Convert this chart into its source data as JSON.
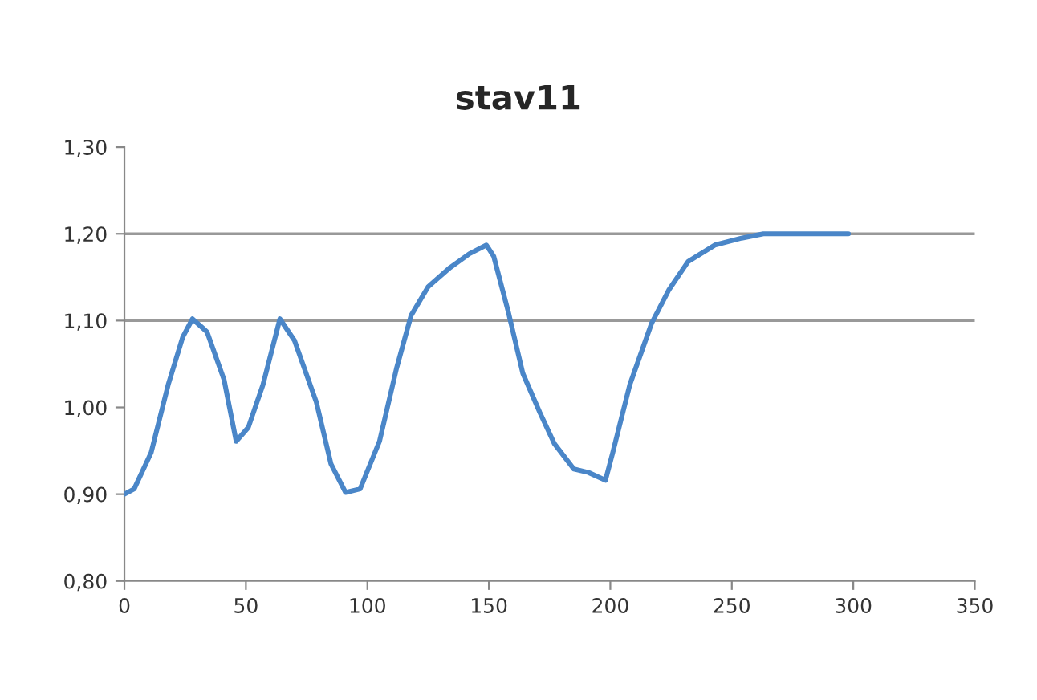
{
  "chart_data": {
    "type": "line",
    "title": "stav11",
    "x": [
      0,
      4,
      11,
      18,
      24,
      28,
      34,
      41,
      46,
      51,
      57,
      64,
      70,
      79,
      85,
      91,
      97,
      105,
      112,
      118,
      125,
      134,
      142,
      149,
      152,
      158,
      164,
      171,
      177,
      185,
      191,
      198,
      201,
      208,
      217,
      224,
      232,
      243,
      254,
      263,
      298
    ],
    "series": [
      {
        "color": "#4a86c8",
        "values": [
          0.9,
          0.906,
          0.948,
          1.026,
          1.081,
          1.102,
          1.087,
          1.032,
          0.961,
          0.977,
          1.026,
          1.102,
          1.077,
          1.006,
          0.935,
          0.902,
          0.906,
          0.961,
          1.045,
          1.106,
          1.139,
          1.161,
          1.177,
          1.187,
          1.174,
          1.11,
          1.039,
          0.994,
          0.958,
          0.929,
          0.925,
          0.916,
          0.948,
          1.026,
          1.097,
          1.135,
          1.168,
          1.187,
          1.195,
          1.2,
          1.2
        ]
      }
    ],
    "xlim": [
      0,
      350
    ],
    "xticks": [
      0,
      50,
      100,
      150,
      200,
      250,
      300,
      350
    ],
    "ylim": [
      0.8,
      1.3
    ],
    "yticks": [
      {
        "value": 0.8,
        "label": "0,80"
      },
      {
        "value": 0.9,
        "label": "0,90"
      },
      {
        "value": 1.0,
        "label": "1,00"
      },
      {
        "value": 1.1,
        "label": "1,10"
      },
      {
        "value": 1.2,
        "label": "1,20"
      },
      {
        "value": 1.3,
        "label": "1,30"
      }
    ],
    "ref_lines": [
      {
        "axis": "y",
        "value": 1.1,
        "color": "#999999"
      },
      {
        "axis": "y",
        "value": 1.2,
        "color": "#999999"
      }
    ],
    "marker": "none",
    "line_style": "solid",
    "legend": false
  }
}
